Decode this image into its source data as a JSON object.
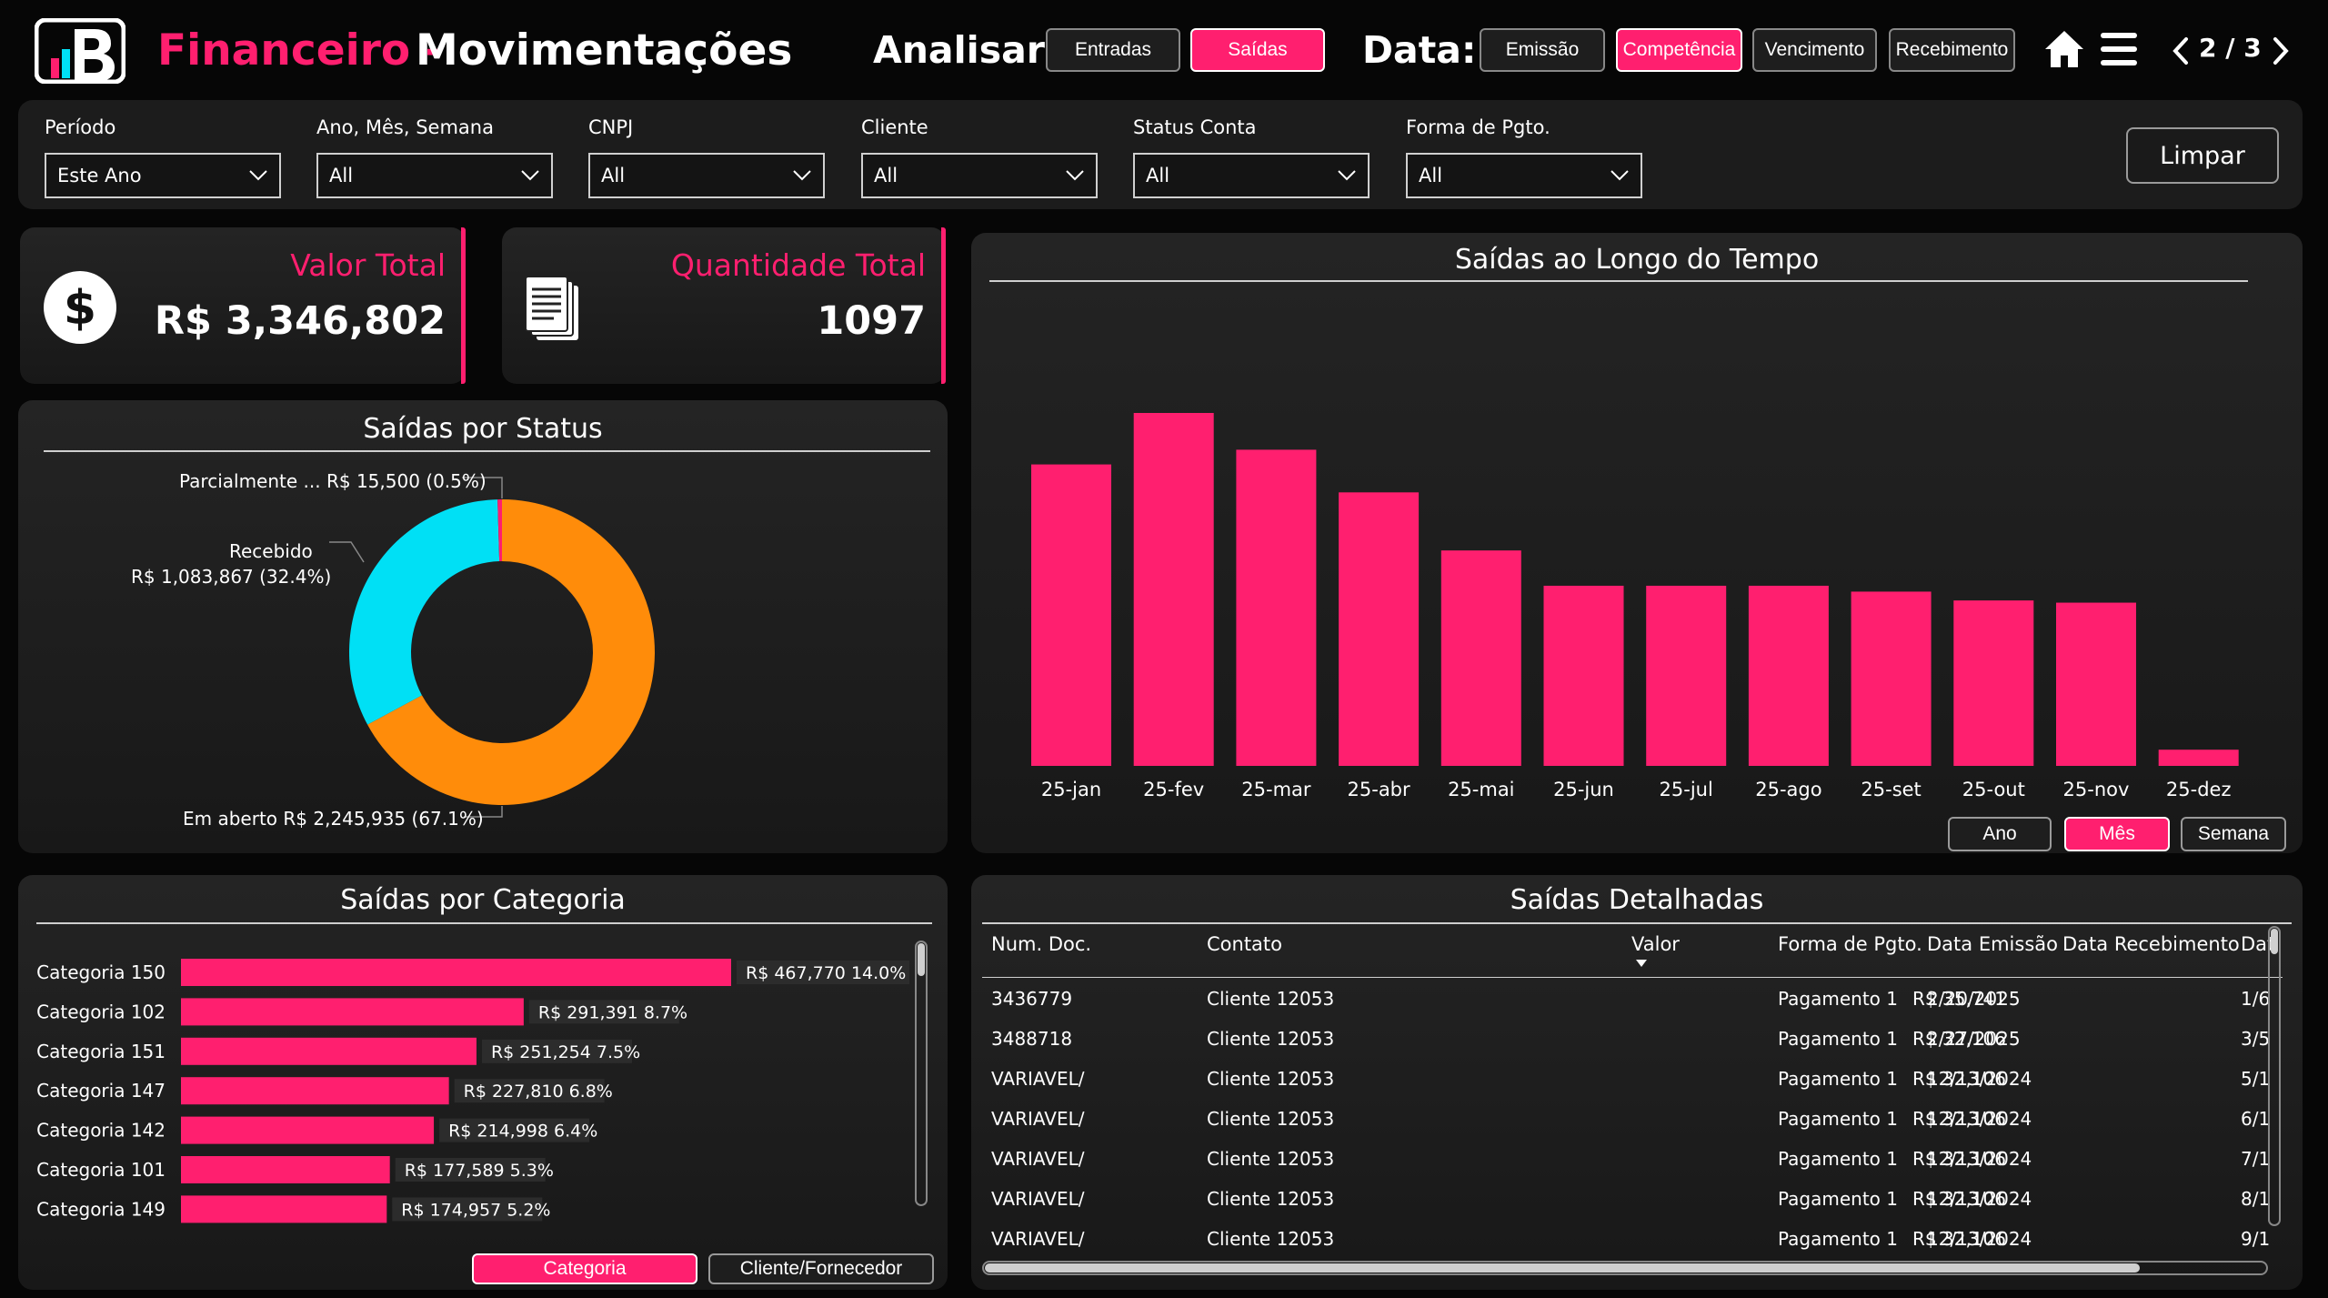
{
  "header": {
    "title_accent": "Financeiro -",
    "title_main": "Movimentações",
    "analisar_label": "Analisar:",
    "analisar_buttons": [
      "Entradas",
      "Saídas"
    ],
    "data_label": "Data:",
    "data_buttons": [
      "Emissão",
      "Competência",
      "Vencimento",
      "Recebimento"
    ],
    "pager": "2 / 3",
    "accent_color": "#ff1f6f"
  },
  "filters": [
    {
      "label": "Período",
      "value": "Este Ano"
    },
    {
      "label": "Ano, Mês, Semana",
      "value": "All"
    },
    {
      "label": "CNPJ",
      "value": "All"
    },
    {
      "label": "Cliente",
      "value": "All"
    },
    {
      "label": "Status Conta",
      "value": "All"
    },
    {
      "label": "Forma de Pgto.",
      "value": "All"
    }
  ],
  "clear_button": "Limpar",
  "kpis": {
    "valor_total": {
      "label": "Valor Total",
      "value": "R$ 3,346,802",
      "icon": "dollar-icon"
    },
    "quantidade_total": {
      "label": "Quantidade Total",
      "value": "1097",
      "icon": "documents-icon"
    }
  },
  "status_chart": {
    "title": "Saídas por Status",
    "labels": {
      "parcial": "Parcialmente ... R$ 15,500 (0.5%)",
      "recebido_1": "Recebido",
      "recebido_2": "R$ 1,083,867 (32.4%)",
      "aberto": "Em aberto R$ 2,245,935 (67.1%)"
    }
  },
  "time_chart": {
    "title": "Saídas ao Longo do Tempo",
    "buttons": [
      "Ano",
      "Mês",
      "Semana"
    ]
  },
  "category_chart": {
    "title": "Saídas por Categoria",
    "buttons": [
      "Categoria",
      "Cliente/Fornecedor"
    ]
  },
  "detail_table": {
    "title": "Saídas Detalhadas",
    "columns": [
      "Num. Doc.",
      "Contato",
      "Valor",
      "Forma de Pgto.",
      "Data Emissão",
      "Data Recebimento",
      "Dat"
    ],
    "rows": [
      [
        "3436779",
        "Cliente 12053",
        "R$ 35,741",
        "Pagamento 1",
        "2/20/2025",
        "",
        "1/6"
      ],
      [
        "3488718",
        "Cliente 12053",
        "R$ 32,106",
        "Pagamento 1",
        "2/27/2025",
        "",
        "3/5"
      ],
      [
        "VARIAVEL/",
        "Cliente 12053",
        "R$ 32,106",
        "Pagamento 1",
        "12/13/2024",
        "",
        "5/1"
      ],
      [
        "VARIAVEL/",
        "Cliente 12053",
        "R$ 32,106",
        "Pagamento 1",
        "12/13/2024",
        "",
        "6/1"
      ],
      [
        "VARIAVEL/",
        "Cliente 12053",
        "R$ 32,106",
        "Pagamento 1",
        "12/13/2024",
        "",
        "7/1"
      ],
      [
        "VARIAVEL/",
        "Cliente 12053",
        "R$ 32,106",
        "Pagamento 1",
        "12/13/2024",
        "",
        "8/1"
      ],
      [
        "VARIAVEL/",
        "Cliente 12053",
        "R$ 32,106",
        "Pagamento 1",
        "12/13/2024",
        "",
        "9/1"
      ]
    ]
  },
  "chart_data": [
    {
      "type": "pie",
      "title": "Saídas por Status",
      "categories": [
        "Em aberto",
        "Recebido",
        "Parcialmente ..."
      ],
      "values": [
        2245935,
        1083867,
        15500
      ],
      "percentages": [
        67.1,
        32.4,
        0.5
      ],
      "colors": [
        "#ff8c0a",
        "#00e0f5",
        "#ff1f6f"
      ]
    },
    {
      "type": "bar",
      "title": "Saídas ao Longo do Tempo",
      "categories": [
        "25-jan",
        "25-fev",
        "25-mar",
        "25-abr",
        "25-mai",
        "25-jun",
        "25-jul",
        "25-ago",
        "25-set",
        "25-out",
        "25-nov",
        "25-dez"
      ],
      "values": [
        410,
        480,
        430,
        372,
        293,
        245,
        245,
        245,
        237,
        225,
        222,
        22
      ],
      "color": "#ff1f6f",
      "grid": false
    },
    {
      "type": "bar",
      "orientation": "horizontal",
      "title": "Saídas por Categoria",
      "categories": [
        "Categoria 150",
        "Categoria 102",
        "Categoria 151",
        "Categoria 147",
        "Categoria 142",
        "Categoria 101",
        "Categoria 149"
      ],
      "values": [
        467770,
        291391,
        251254,
        227810,
        214998,
        177589,
        174957
      ],
      "labels": [
        "R$ 467,770  14.0%",
        "R$ 291,391  8.7%",
        "R$ 251,254  7.5%",
        "R$ 227,810  6.8%",
        "R$ 214,998  6.4%",
        "R$ 177,589  5.3%",
        "R$ 174,957  5.2%"
      ],
      "color": "#ff1f6f"
    }
  ]
}
